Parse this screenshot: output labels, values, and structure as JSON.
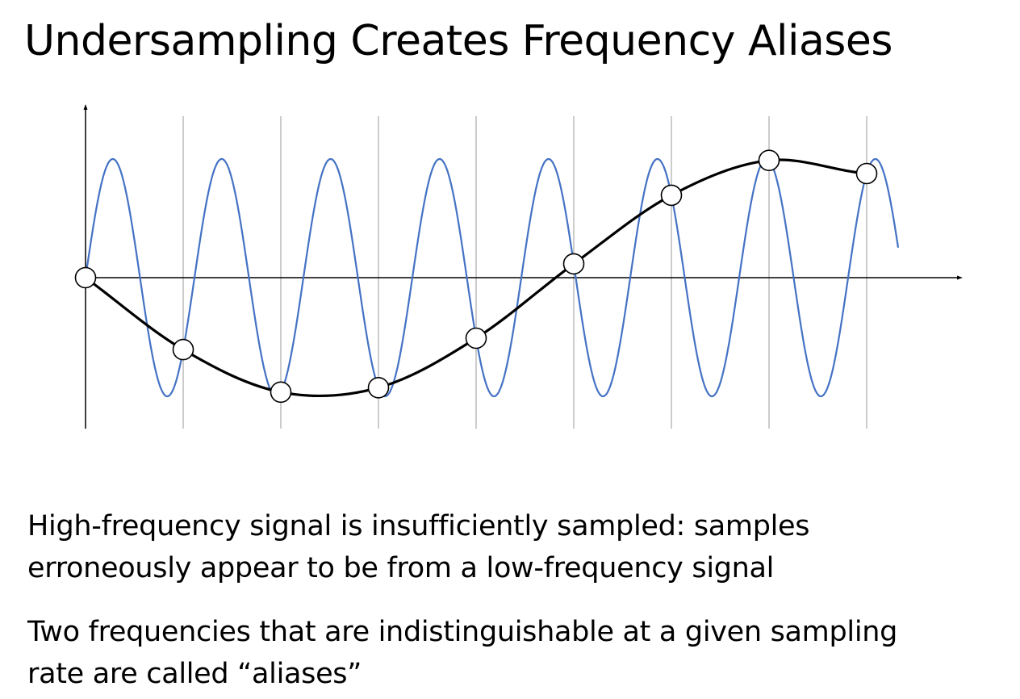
{
  "slide": {
    "title": "Undersampling Creates Frequency Aliases"
  },
  "diagram": {
    "description_type": "aliasing",
    "high_frequency_cycles": 8,
    "samples": 9,
    "low_frequency_signal": "sampled alias",
    "colors": {
      "high_frequency": "#4472c4",
      "alias": "#000000",
      "gridline": "#aaaaaa",
      "axis": "#000000",
      "sample_fill": "#ffffff"
    }
  },
  "body": {
    "paragraph_1": {
      "line_1": "High-frequency signal is insufficiently sampled: samples",
      "line_2": "erroneously appear to be from a low-frequency signal"
    },
    "paragraph_2": {
      "line_1": "Two frequencies that are indistinguishable at a given sampling",
      "line_2": "rate are called “aliases”"
    }
  }
}
